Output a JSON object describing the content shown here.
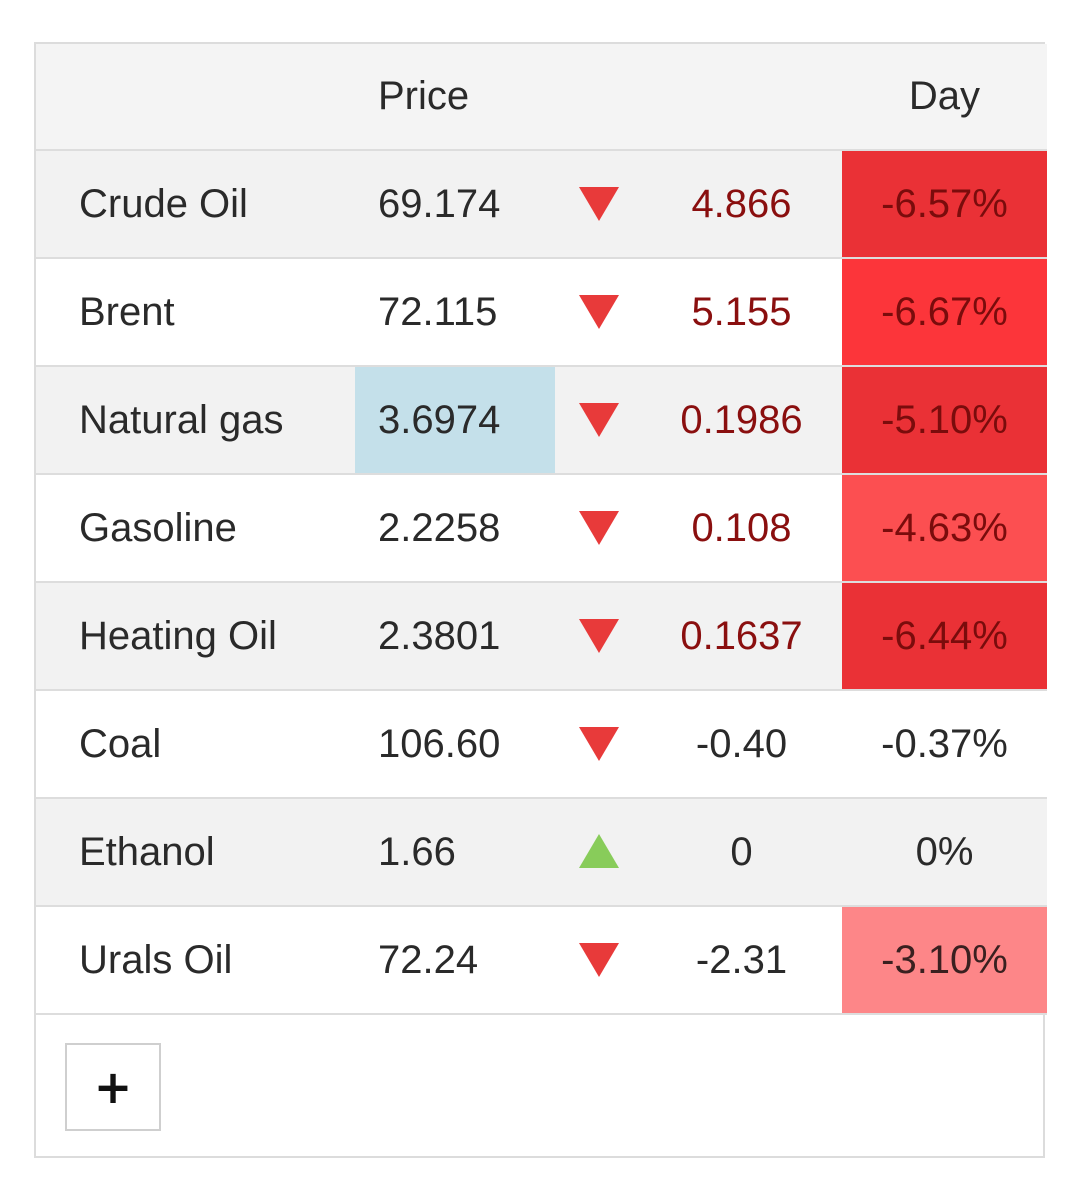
{
  "header": {
    "price_label": "Price",
    "day_label": "Day"
  },
  "rows": [
    {
      "name": "Crude Oil",
      "price": "69.174",
      "direction": "down",
      "change": "4.866",
      "pct": "-6.57%",
      "pct_bg": "#ea3136",
      "change_color": "#8a0f0f",
      "price_highlight": false
    },
    {
      "name": "Brent",
      "price": "72.115",
      "direction": "down",
      "change": "5.155",
      "pct": "-6.67%",
      "pct_bg": "#fc353a",
      "change_color": "#8a0f0f",
      "price_highlight": false
    },
    {
      "name": "Natural gas",
      "price": "3.6974",
      "direction": "down",
      "change": "0.1986",
      "pct": "-5.10%",
      "pct_bg": "#ea3136",
      "change_color": "#8a0f0f",
      "price_highlight": true
    },
    {
      "name": "Gasoline",
      "price": "2.2258",
      "direction": "down",
      "change": "0.108",
      "pct": "-4.63%",
      "pct_bg": "#fc4f51",
      "change_color": "#8a0f0f",
      "price_highlight": false
    },
    {
      "name": "Heating Oil",
      "price": "2.3801",
      "direction": "down",
      "change": "0.1637",
      "pct": "-6.44%",
      "pct_bg": "#ea3136",
      "change_color": "#8a0f0f",
      "price_highlight": false
    },
    {
      "name": "Coal",
      "price": "106.60",
      "direction": "down",
      "change": "-0.40",
      "pct": "-0.37%",
      "pct_bg": "",
      "change_color": "#2a2a2a",
      "price_highlight": false
    },
    {
      "name": "Ethanol",
      "price": "1.66",
      "direction": "up",
      "change": "0",
      "pct": "0%",
      "pct_bg": "",
      "change_color": "#2a2a2a",
      "price_highlight": false
    },
    {
      "name": "Urals Oil",
      "price": "72.24",
      "direction": "down",
      "change": "-2.31",
      "pct": "-3.10%",
      "pct_bg": "#fd8688",
      "change_color": "#2a2a2a",
      "price_highlight": false
    }
  ],
  "add_button": {
    "label": "+"
  },
  "colors": {
    "down_arrow": "#e83a3a",
    "up_arrow": "#88cc5a",
    "highlight": "#c4e0ea"
  }
}
